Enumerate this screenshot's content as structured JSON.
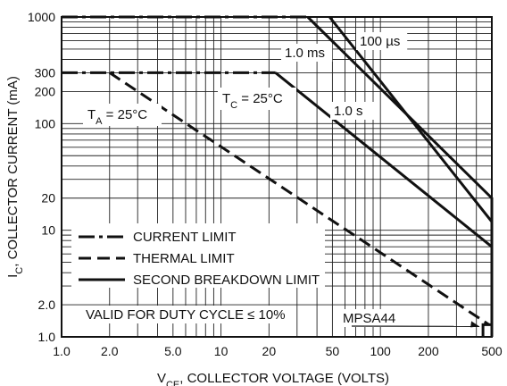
{
  "chart_data": {
    "type": "line",
    "title": "",
    "xlabel": {
      "main": "V",
      "sub": "CE",
      "rest": ", COLLECTOR VOLTAGE (VOLTS)"
    },
    "ylabel": {
      "main": "I",
      "sub": "C",
      "rest": ", COLLECTOR CURRENT (mA)"
    },
    "x_scale": "log",
    "y_scale": "log",
    "xlim": [
      1,
      500
    ],
    "ylim": [
      1,
      1000
    ],
    "grid": true,
    "x_tick_labels": [
      {
        "value": 1,
        "label": "1.0"
      },
      {
        "value": 2,
        "label": "2.0"
      },
      {
        "value": 5,
        "label": "5.0"
      },
      {
        "value": 10,
        "label": "10"
      },
      {
        "value": 20,
        "label": "20"
      },
      {
        "value": 50,
        "label": "50"
      },
      {
        "value": 100,
        "label": "100"
      },
      {
        "value": 200,
        "label": "200"
      },
      {
        "value": 500,
        "label": "500"
      }
    ],
    "y_tick_labels": [
      {
        "value": 1,
        "label": "1.0"
      },
      {
        "value": 2,
        "label": "2.0"
      },
      {
        "value": 10,
        "label": "10"
      },
      {
        "value": 20,
        "label": "20"
      },
      {
        "value": 100,
        "label": "100"
      },
      {
        "value": 200,
        "label": "200"
      },
      {
        "value": 300,
        "label": "300"
      },
      {
        "value": 1000,
        "label": "1000"
      }
    ],
    "series": [
      {
        "style": "current-limit",
        "points": [
          [
            1,
            1000
          ],
          [
            35,
            1000
          ]
        ]
      },
      {
        "style": "second-breakdown",
        "points": [
          [
            35,
            1000
          ],
          [
            500,
            20
          ],
          [
            500,
            12
          ]
        ]
      },
      {
        "style": "second-breakdown",
        "points": [
          [
            48,
            1000
          ],
          [
            500,
            12
          ],
          [
            500,
            1
          ]
        ]
      },
      {
        "style": "second-breakdown",
        "points": [
          [
            22,
            300
          ],
          [
            500,
            7
          ]
        ]
      },
      {
        "style": "current-limit",
        "points": [
          [
            1,
            300
          ],
          [
            22,
            300
          ]
        ]
      },
      {
        "style": "thermal-limit",
        "points": [
          [
            2,
            300
          ],
          [
            480,
            1.3
          ]
        ]
      },
      {
        "style": "second-breakdown",
        "points": [
          [
            440,
            1
          ],
          [
            440,
            1.3
          ],
          [
            500,
            1.3
          ]
        ]
      }
    ],
    "annotations": [
      {
        "id": "label_100us",
        "text": "100 µs"
      },
      {
        "id": "label_1ms",
        "text": "1.0 ms"
      },
      {
        "id": "label_1s",
        "text": "1.0 s"
      },
      {
        "id": "label_tc",
        "main": "T",
        "sub": "C",
        "rest": " = 25°C"
      },
      {
        "id": "label_ta",
        "main": "T",
        "sub": "A",
        "rest": " = 25°C"
      },
      {
        "id": "label_duty",
        "text": "VALID FOR DUTY CYCLE ≤ 10%"
      },
      {
        "id": "label_mpsa44",
        "text": "MPSA44"
      }
    ],
    "legend": {
      "placement": "bottom-left",
      "items": [
        {
          "style": "current-limit",
          "label": "CURRENT LIMIT"
        },
        {
          "style": "thermal-limit",
          "label": "THERMAL LIMIT"
        },
        {
          "style": "second-breakdown",
          "label": "SECOND BREAKDOWN LIMIT"
        }
      ]
    }
  }
}
